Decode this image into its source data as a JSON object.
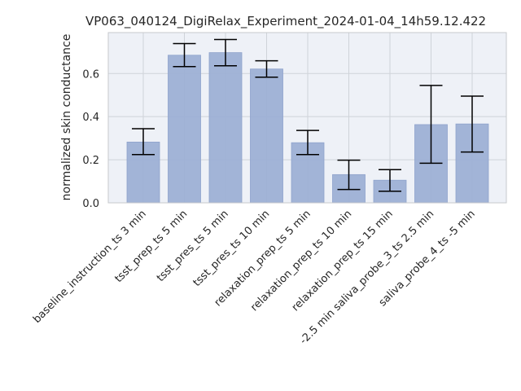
{
  "chart_data": {
    "type": "bar",
    "title": "VP063_040124_DigiRelax_Experiment_2024-01-04_14h59.12.422",
    "xlabel": "",
    "ylabel": "normalized skin conductance",
    "ylim": [
      0,
      0.79
    ],
    "yticks": [
      0.0,
      0.2,
      0.4,
      0.6
    ],
    "ytick_labels": [
      "0.0",
      "0.2",
      "0.4",
      "0.6"
    ],
    "grid": true,
    "categories": [
      "baseline_instruction_ts 3 min",
      "tsst_prep_ts 5 min",
      "tsst_pres_ts 5 min",
      "tsst_pres_ts 10 min",
      "relaxation_prep_ts 5 min",
      "relaxation_prep_ts 10 min",
      "relaxation_prep_ts 15 min",
      "-2.5 min saliva_probe_3_ts 2.5 min",
      "saliva_probe_4_ts -5 min"
    ],
    "values": [
      0.282,
      0.685,
      0.697,
      0.621,
      0.279,
      0.131,
      0.105,
      0.363,
      0.366
    ],
    "error_low": [
      0.224,
      0.632,
      0.636,
      0.583,
      0.224,
      0.062,
      0.054,
      0.184,
      0.236
    ],
    "error_high": [
      0.344,
      0.739,
      0.758,
      0.659,
      0.336,
      0.198,
      0.154,
      0.545,
      0.495
    ],
    "colors": {
      "bar": "#9db0d5",
      "bar_edge": "#8fa3cc",
      "error": "#000000",
      "axes_bg": "#eef1f7",
      "grid": "#cfd3d9",
      "spine": "#c7c9cc"
    }
  }
}
